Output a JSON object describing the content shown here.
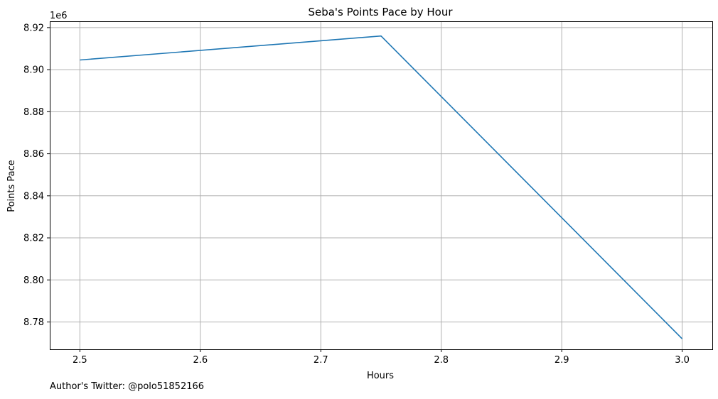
{
  "chart_data": {
    "type": "line",
    "title": "Seba's Points Pace by Hour",
    "xlabel": "Hours",
    "ylabel": "Points Pace",
    "y_offset_label": "1e6",
    "x": [
      2.5,
      2.75,
      3.0
    ],
    "series": [
      {
        "values": [
          8904600,
          8916000,
          8772000
        ],
        "color": "#1f77b4"
      }
    ],
    "xlim": [
      2.475,
      3.025
    ],
    "ylim": [
      8767000,
      8923000
    ],
    "x_ticks": [
      2.5,
      2.6,
      2.7,
      2.8,
      2.9,
      3.0
    ],
    "x_tick_labels": [
      "2.5",
      "2.6",
      "2.7",
      "2.8",
      "2.9",
      "3.0"
    ],
    "y_ticks": [
      8780000,
      8800000,
      8820000,
      8840000,
      8860000,
      8880000,
      8900000,
      8920000
    ],
    "y_tick_labels": [
      "8.78",
      "8.80",
      "8.82",
      "8.84",
      "8.86",
      "8.88",
      "8.90",
      "8.92"
    ],
    "grid": true,
    "legend": "none"
  },
  "footer": {
    "text": "Author's Twitter: @polo51852166"
  }
}
